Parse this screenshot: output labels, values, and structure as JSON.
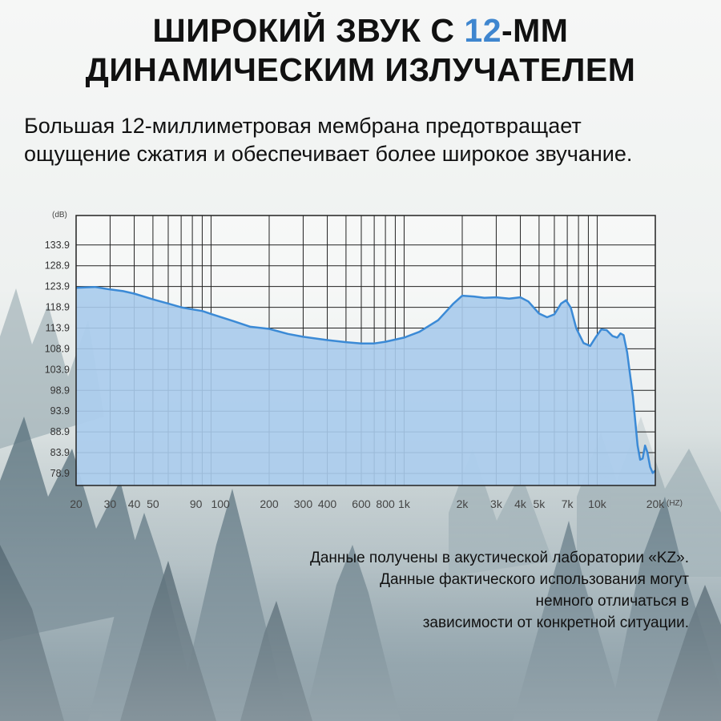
{
  "headline": {
    "line1_pre": "ШИРОКИЙ ЗВУК С ",
    "line1_accent": "12",
    "line1_post": "-ММ",
    "line2": "ДИНАМИЧЕСКИМ ИЗЛУЧАТЕЛЕМ",
    "accent_color": "#3f86cf"
  },
  "subtitle": {
    "line1": "Большая 12-миллиметровая мембрана предотвращает",
    "line2": "ощущение сжатия и обеспечивает более широкое звучание."
  },
  "chart_data": {
    "type": "area",
    "xscale": "log",
    "yunit": "(dB)",
    "xunit": "(HZ)",
    "xlim": [
      20,
      20000
    ],
    "ylim": [
      76,
      141
    ],
    "grid": true,
    "y_ticks": [
      "133.9",
      "128.9",
      "123.9",
      "118.9",
      "113.9",
      "108.9",
      "103.9",
      "98.9",
      "93.9",
      "88.9",
      "83.9",
      "78.9"
    ],
    "x_ticks": [
      {
        "f": 20,
        "label": "20"
      },
      {
        "f": 30,
        "label": "30"
      },
      {
        "f": 40,
        "label": "40"
      },
      {
        "f": 50,
        "label": "50"
      },
      {
        "f": 90,
        "label": "90"
      },
      {
        "f": 100,
        "label": "100"
      },
      {
        "f": 200,
        "label": "200"
      },
      {
        "f": 300,
        "label": "300"
      },
      {
        "f": 400,
        "label": "400"
      },
      {
        "f": 600,
        "label": "600"
      },
      {
        "f": 800,
        "label": "800"
      },
      {
        "f": 1000,
        "label": "1k"
      },
      {
        "f": 2000,
        "label": "2k"
      },
      {
        "f": 3000,
        "label": "3k"
      },
      {
        "f": 4000,
        "label": "4k"
      },
      {
        "f": 5000,
        "label": "5k"
      },
      {
        "f": 7000,
        "label": "7k"
      },
      {
        "f": 10000,
        "label": "10k"
      },
      {
        "f": 20000,
        "label": "20k"
      }
    ],
    "series": [
      {
        "color": "#3b8ad6",
        "fill": "#a9cbec",
        "points": [
          [
            20,
            123.6
          ],
          [
            25,
            123.8
          ],
          [
            30,
            123.2
          ],
          [
            35,
            122.8
          ],
          [
            40,
            122.2
          ],
          [
            50,
            120.8
          ],
          [
            60,
            119.8
          ],
          [
            70,
            118.9
          ],
          [
            80,
            118.4
          ],
          [
            90,
            118.0
          ],
          [
            100,
            117.3
          ],
          [
            130,
            115.6
          ],
          [
            160,
            114.2
          ],
          [
            200,
            113.7
          ],
          [
            250,
            112.5
          ],
          [
            300,
            111.8
          ],
          [
            400,
            111.0
          ],
          [
            500,
            110.5
          ],
          [
            600,
            110.2
          ],
          [
            700,
            110.2
          ],
          [
            800,
            110.6
          ],
          [
            1000,
            111.6
          ],
          [
            1200,
            113.0
          ],
          [
            1500,
            115.8
          ],
          [
            1800,
            119.8
          ],
          [
            2000,
            121.7
          ],
          [
            2300,
            121.5
          ],
          [
            2600,
            121.2
          ],
          [
            3000,
            121.3
          ],
          [
            3500,
            121.0
          ],
          [
            4000,
            121.3
          ],
          [
            4400,
            120.3
          ],
          [
            5000,
            117.4
          ],
          [
            5500,
            116.5
          ],
          [
            6000,
            117.2
          ],
          [
            6500,
            119.8
          ],
          [
            6900,
            120.6
          ],
          [
            7300,
            118.8
          ],
          [
            7800,
            113.8
          ],
          [
            8500,
            110.3
          ],
          [
            9200,
            109.6
          ],
          [
            9800,
            111.6
          ],
          [
            10500,
            113.6
          ],
          [
            11200,
            113.4
          ],
          [
            12000,
            112.0
          ],
          [
            12700,
            111.6
          ],
          [
            13200,
            112.6
          ],
          [
            13700,
            112.2
          ],
          [
            14300,
            108.0
          ],
          [
            15300,
            97.5
          ],
          [
            16200,
            85.6
          ],
          [
            16700,
            82.2
          ],
          [
            17200,
            82.5
          ],
          [
            17700,
            85.6
          ],
          [
            18200,
            84.0
          ],
          [
            18800,
            80.5
          ],
          [
            19400,
            79.0
          ],
          [
            20000,
            79.6
          ]
        ]
      }
    ]
  },
  "note": {
    "line1": "Данные получены в акустической лаборатории «KZ».",
    "line2": "Данные фактического использования могут",
    "line3": "немного отличаться в",
    "line4": "зависимости от конкретной ситуации."
  }
}
